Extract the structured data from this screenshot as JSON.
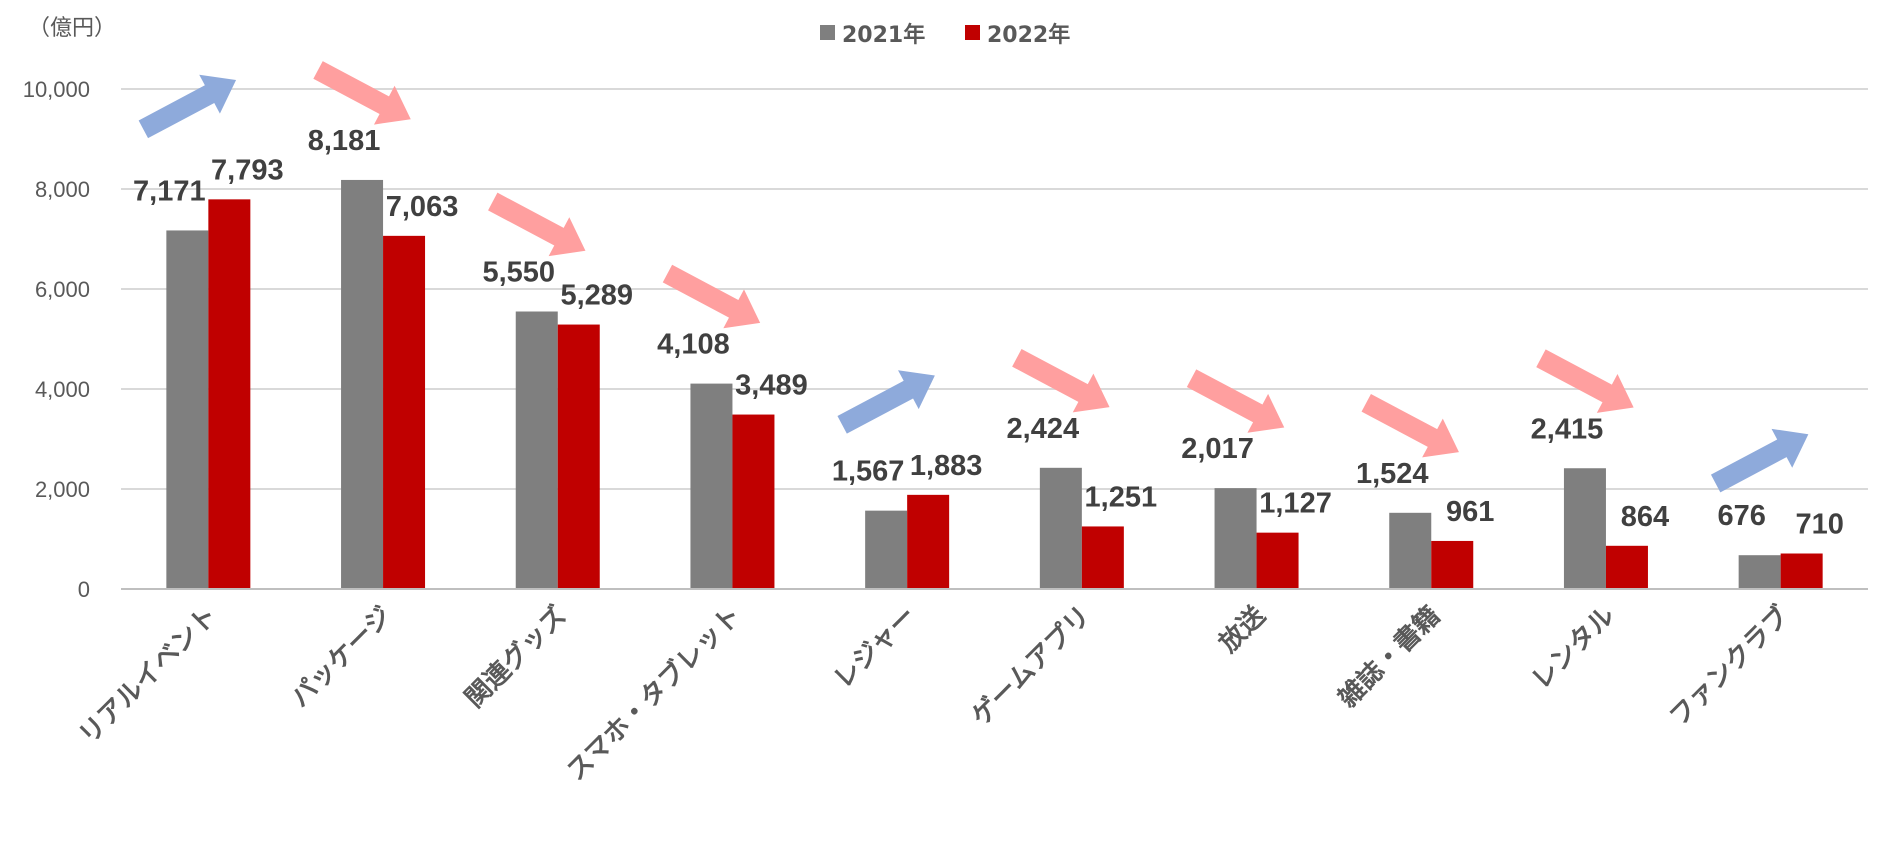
{
  "chart_data": {
    "type": "bar",
    "unit_label": "（億円）",
    "categories": [
      "リアルイベント",
      "パッケージ",
      "関連グッズ",
      "スマホ・タブレット",
      "レジャー",
      "ゲームアプリ",
      "放送",
      "雑誌・書籍",
      "レンタル",
      "ファンクラブ"
    ],
    "series": [
      {
        "name": "2021年",
        "color": "#7f7f7f",
        "values": [
          7171,
          8181,
          5550,
          4108,
          1567,
          2424,
          2017,
          1524,
          2415,
          676
        ],
        "labels": [
          "7,171",
          "8,181",
          "5,550",
          "4,108",
          "1,567",
          "2,424",
          "2,017",
          "1,524",
          "2,415",
          "676"
        ]
      },
      {
        "name": "2022年",
        "color": "#c00000",
        "values": [
          7793,
          7063,
          5289,
          3489,
          1883,
          1251,
          1127,
          961,
          864,
          710
        ],
        "labels": [
          "7,793",
          "7,063",
          "5,289",
          "3,489",
          "1,883",
          "1,251",
          "1,127",
          "961",
          "864",
          "710"
        ]
      }
    ],
    "trend_arrows": [
      "up",
      "down",
      "down",
      "down",
      "up",
      "down",
      "down",
      "down",
      "down",
      "up"
    ],
    "arrow_colors": {
      "up": "#8eaadb",
      "down": "#ff9f9f"
    },
    "ylim": [
      0,
      10000
    ],
    "yticks": [
      0,
      2000,
      4000,
      6000,
      8000,
      10000
    ],
    "ytick_labels": [
      "0",
      "2,000",
      "4,000",
      "6,000",
      "8,000",
      "10,000"
    ],
    "grid": true,
    "legend_position": "top-center"
  }
}
